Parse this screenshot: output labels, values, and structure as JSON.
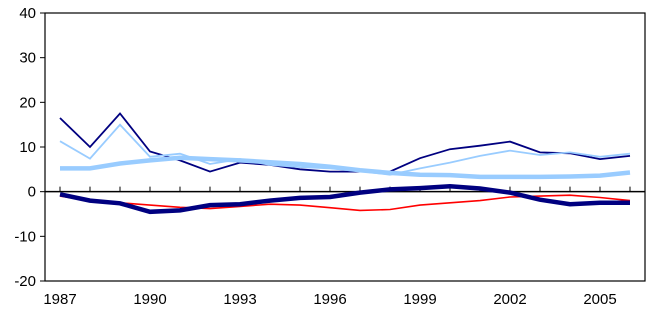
{
  "chart_data": {
    "type": "line",
    "title": "",
    "xlabel": "",
    "ylabel": "",
    "x": [
      1987,
      1988,
      1989,
      1990,
      1991,
      1992,
      1993,
      1994,
      1995,
      1996,
      1997,
      1998,
      1999,
      2000,
      2001,
      2002,
      2003,
      2004,
      2005,
      2006
    ],
    "xlim": [
      1986.5,
      2006.5
    ],
    "ylim": [
      -20,
      40
    ],
    "x_tick_labels": [
      "1987",
      "1990",
      "1993",
      "1996",
      "1999",
      "2002",
      "2005"
    ],
    "y_tick_labels": [
      "40",
      "30",
      "20",
      "10",
      "0",
      "-10",
      "-20"
    ],
    "y_ticks": [
      40,
      30,
      20,
      10,
      0,
      -10,
      -20
    ],
    "zero_line": true,
    "grid": false,
    "series": [
      {
        "color": "#ff0000",
        "line_width": 1.6,
        "values": [
          -1.0,
          -2.0,
          -2.5,
          -3.0,
          -3.5,
          -3.8,
          -3.3,
          -2.8,
          -3.0,
          -3.6,
          -4.2,
          -4.0,
          -3.0,
          -2.5,
          -2.0,
          -1.2,
          -1.0,
          -0.8,
          -1.3,
          -2.0
        ]
      },
      {
        "color": "#000080",
        "line_width": 1.8,
        "values": [
          16.5,
          10.0,
          17.5,
          9.0,
          7.0,
          4.5,
          6.5,
          6.0,
          5.0,
          4.5,
          4.5,
          4.5,
          7.5,
          9.5,
          10.3,
          11.2,
          8.8,
          8.6,
          7.3,
          8.0
        ]
      },
      {
        "color": "#99ccff",
        "line_width": 1.8,
        "values": [
          11.3,
          7.4,
          15.0,
          7.8,
          8.5,
          6.2,
          7.3,
          6.0,
          5.5,
          5.2,
          4.6,
          3.8,
          5.2,
          6.5,
          8.0,
          9.2,
          8.2,
          8.8,
          7.8,
          8.5
        ]
      },
      {
        "color": "#99ccff",
        "line_width": 4.5,
        "values": [
          5.2,
          5.2,
          6.3,
          7.0,
          7.6,
          7.3,
          7.0,
          6.6,
          6.2,
          5.6,
          4.8,
          4.2,
          3.8,
          3.7,
          3.3,
          3.3,
          3.3,
          3.4,
          3.6,
          4.3
        ]
      },
      {
        "color": "#000080",
        "line_width": 4.5,
        "values": [
          -0.6,
          -2.0,
          -2.6,
          -4.5,
          -4.2,
          -3.0,
          -2.8,
          -2.0,
          -1.4,
          -1.2,
          -0.2,
          0.5,
          0.8,
          1.2,
          0.7,
          -0.2,
          -1.8,
          -2.8,
          -2.5,
          -2.5
        ]
      }
    ]
  }
}
